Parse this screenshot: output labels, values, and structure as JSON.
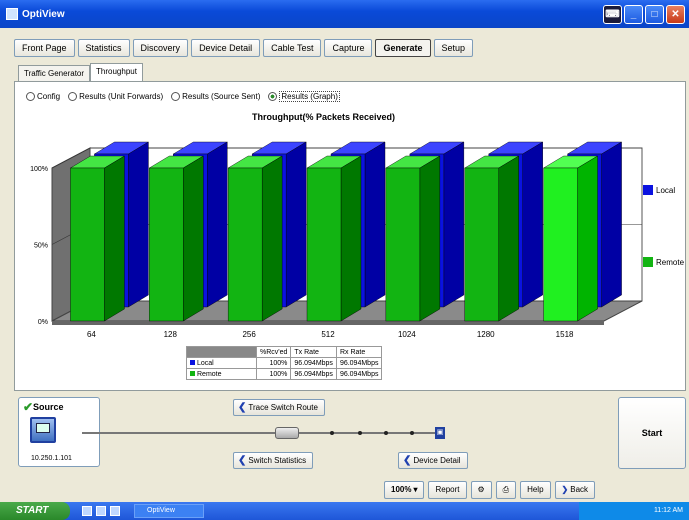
{
  "window": {
    "title": "OptiView"
  },
  "nav": [
    "Front Page",
    "Statistics",
    "Discovery",
    "Device Detail",
    "Cable Test",
    "Capture",
    "Generate",
    "Setup"
  ],
  "nav_active": 6,
  "tabs": [
    "Traffic Generator",
    "Throughput"
  ],
  "tab_active": 1,
  "radios": [
    {
      "label": "Config",
      "selected": false
    },
    {
      "label": "Results (Unit Forwards)",
      "selected": false
    },
    {
      "label": "Results (Source Sent)",
      "selected": false
    },
    {
      "label": "Results (Graph)",
      "selected": true
    }
  ],
  "chart_data": {
    "type": "bar",
    "title": "Throughput(% Packets Received)",
    "categories": [
      "64",
      "128",
      "256",
      "512",
      "1024",
      "1280",
      "1518"
    ],
    "series": [
      {
        "name": "Local",
        "values": [
          100,
          100,
          100,
          100,
          100,
          100,
          100
        ],
        "color": "#0a12e0"
      },
      {
        "name": "Remote",
        "values": [
          100,
          100,
          100,
          100,
          100,
          100,
          100
        ],
        "color": "#12b412"
      }
    ],
    "highlight_color": "#20f020",
    "yticks": [
      "0%",
      "50%",
      "100%"
    ],
    "ylim": [
      0,
      100
    ],
    "legend_position": "right"
  },
  "result_table": {
    "headers": [
      "",
      "%Rcv'ed",
      "Tx Rate",
      "Rx Rate"
    ],
    "rows": [
      [
        "Local",
        "100%",
        "96.094Mbps",
        "96.094Mbps"
      ],
      [
        "Remote",
        "100%",
        "96.094Mbps",
        "96.094Mbps"
      ]
    ]
  },
  "source": {
    "label": "Source",
    "ip": "10.250.1.101"
  },
  "slider_position": 0.58,
  "buttons": {
    "trace": "Trace Switch Route",
    "switch_stats": "Switch Statistics",
    "device_detail": "Device Detail",
    "start": "Start"
  },
  "bottom": {
    "zoom": "100%",
    "report": "Report",
    "help": "Help",
    "back": "Back"
  },
  "taskbar": {
    "start": "START",
    "item": "OptiView",
    "clock": "11:12 AM"
  }
}
